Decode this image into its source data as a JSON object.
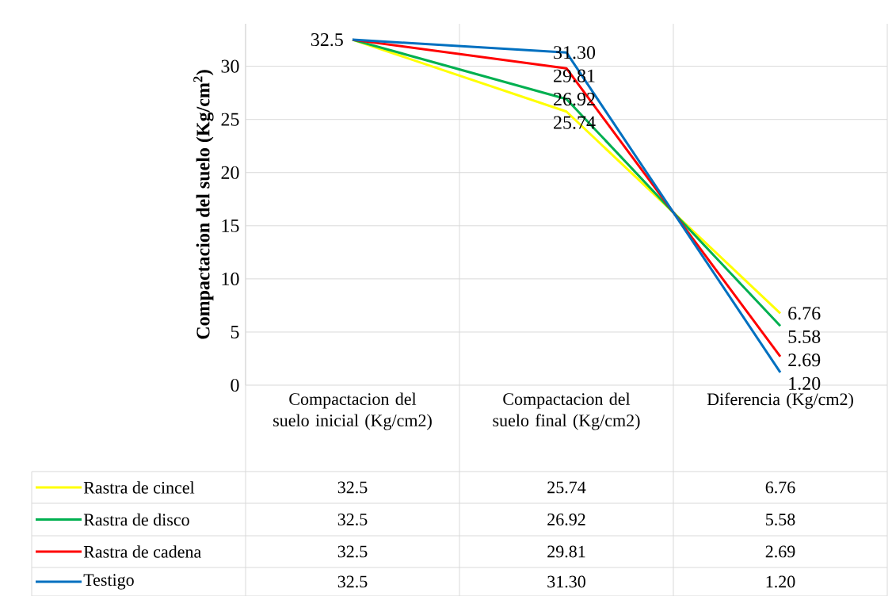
{
  "chart_data": {
    "type": "line",
    "ylabel": "Compactacion del suelo (Kg/cm$^{2}$)",
    "categories": [
      "Compactacion del suelo inicial (Kg/cm2)",
      "Compactacion del suelo final (Kg/cm2)",
      "Diferencia (Kg/cm2)"
    ],
    "series": [
      {
        "name": "Rastra de cincel",
        "color": "#ffff00",
        "values": [
          32.5,
          25.74,
          6.76
        ],
        "value_labels": [
          "32.5",
          "25.74",
          "6.76"
        ]
      },
      {
        "name": "Rastra de disco",
        "color": "#00b050",
        "values": [
          32.5,
          26.92,
          5.58
        ],
        "value_labels": [
          "32.5",
          "26.92",
          "5.58"
        ]
      },
      {
        "name": "Rastra de cadena",
        "color": "#ff0000",
        "values": [
          32.5,
          29.81,
          2.69
        ],
        "value_labels": [
          "32.5",
          "29.81",
          "2.69"
        ]
      },
      {
        "name": "Testigo",
        "color": "#0070c0",
        "values": [
          32.5,
          31.3,
          1.2
        ],
        "value_labels": [
          "32.5",
          "31.30",
          "1.20"
        ]
      }
    ],
    "ylim": [
      0,
      34
    ],
    "yticks": [
      0,
      5,
      10,
      15,
      20,
      25,
      30
    ],
    "grid": true,
    "legend": "bottom"
  }
}
